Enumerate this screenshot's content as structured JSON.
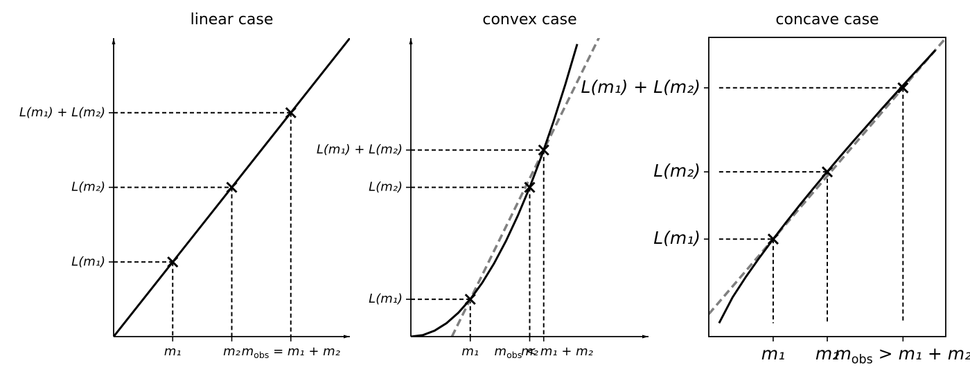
{
  "chart_data": [
    {
      "type": "line",
      "title": "linear case",
      "spines": "arrows",
      "xlim": [
        0,
        4
      ],
      "ylim": [
        0,
        4
      ],
      "xticks": [
        {
          "value": 1,
          "label": "m₁"
        },
        {
          "value": 2,
          "label": "m₂"
        },
        {
          "value": 3,
          "label": "mobs = m₁ + m₂"
        }
      ],
      "yticks": [
        {
          "value": 1,
          "label": "L(m₁)"
        },
        {
          "value": 2,
          "label": "L(m₂)"
        },
        {
          "value": 3,
          "label": "L(m₁) + L(m₂)"
        }
      ],
      "series": [
        {
          "color": "#000000",
          "x": [
            0,
            4
          ],
          "values": [
            0,
            4
          ]
        }
      ],
      "points": {
        "x": [
          1,
          2,
          3
        ],
        "values": [
          1,
          2,
          3
        ]
      }
    },
    {
      "type": "line",
      "title": "convex case",
      "spines": "arrows",
      "xlim": [
        0,
        4
      ],
      "ylim": [
        0,
        8
      ],
      "xticks": [
        {
          "value": 1,
          "label": "m₁"
        },
        {
          "value": 2,
          "label": "m₂"
        },
        {
          "value": 2.236,
          "label": "mobs < m₁ + m₂"
        }
      ],
      "yticks": [
        {
          "value": 1,
          "label": "L(m₁)"
        },
        {
          "value": 4,
          "label": "L(m₂)"
        },
        {
          "value": 5,
          "label": "L(m₁) + L(m₂)"
        }
      ],
      "series": [
        {
          "color": "#000000",
          "x": [
            0,
            0.2,
            0.4,
            0.6,
            0.8,
            1,
            1.2,
            1.4,
            1.6,
            1.8,
            2,
            2.2,
            2.4,
            2.6,
            2.8
          ],
          "values": [
            0,
            0.04,
            0.16,
            0.36,
            0.64,
            1,
            1.44,
            1.96,
            2.56,
            3.24,
            4,
            4.84,
            5.76,
            6.76,
            7.84
          ]
        }
      ],
      "reference": {
        "color": "#808080",
        "x": [
          0.691,
          3.4
        ],
        "values": [
          0,
          8.77
        ]
      },
      "points": {
        "x": [
          1,
          2,
          2.236
        ],
        "values": [
          1,
          4,
          5
        ]
      }
    },
    {
      "type": "line",
      "title": "concave case",
      "spines": "box",
      "xlim": [
        -0.19,
        4.19
      ],
      "ylim": [
        -0.16,
        3.4
      ],
      "xticks": [
        {
          "value": 1,
          "label": "m₁"
        },
        {
          "value": 2,
          "label": "m₂"
        },
        {
          "value": 3.4,
          "label": "mobs > m₁ + m₂"
        }
      ],
      "yticks": [
        {
          "value": 1,
          "label": "L(m₁)"
        },
        {
          "value": 1.8,
          "label": "L(m₂)"
        },
        {
          "value": 2.8,
          "label": "L(m₁) + L(m₂)"
        }
      ],
      "series": [
        {
          "color": "#000000",
          "x": [
            0,
            0.25,
            0.5,
            0.75,
            1,
            1.25,
            1.5,
            1.75,
            2,
            2.25,
            2.5,
            2.75,
            3,
            3.25,
            3.5,
            3.75,
            4
          ],
          "values": [
            0,
            0.308,
            0.555,
            0.783,
            1,
            1.209,
            1.412,
            1.609,
            1.802,
            1.992,
            2.178,
            2.36,
            2.544,
            2.723,
            2.899,
            3.074,
            3.249
          ]
        }
      ],
      "reference": {
        "color": "#808080",
        "x": [
          -0.19,
          4.19
        ],
        "values": [
          0.108,
          3.393
        ]
      },
      "points": {
        "x": [
          1,
          2,
          3.4
        ],
        "values": [
          1,
          1.8,
          2.8
        ]
      }
    }
  ]
}
